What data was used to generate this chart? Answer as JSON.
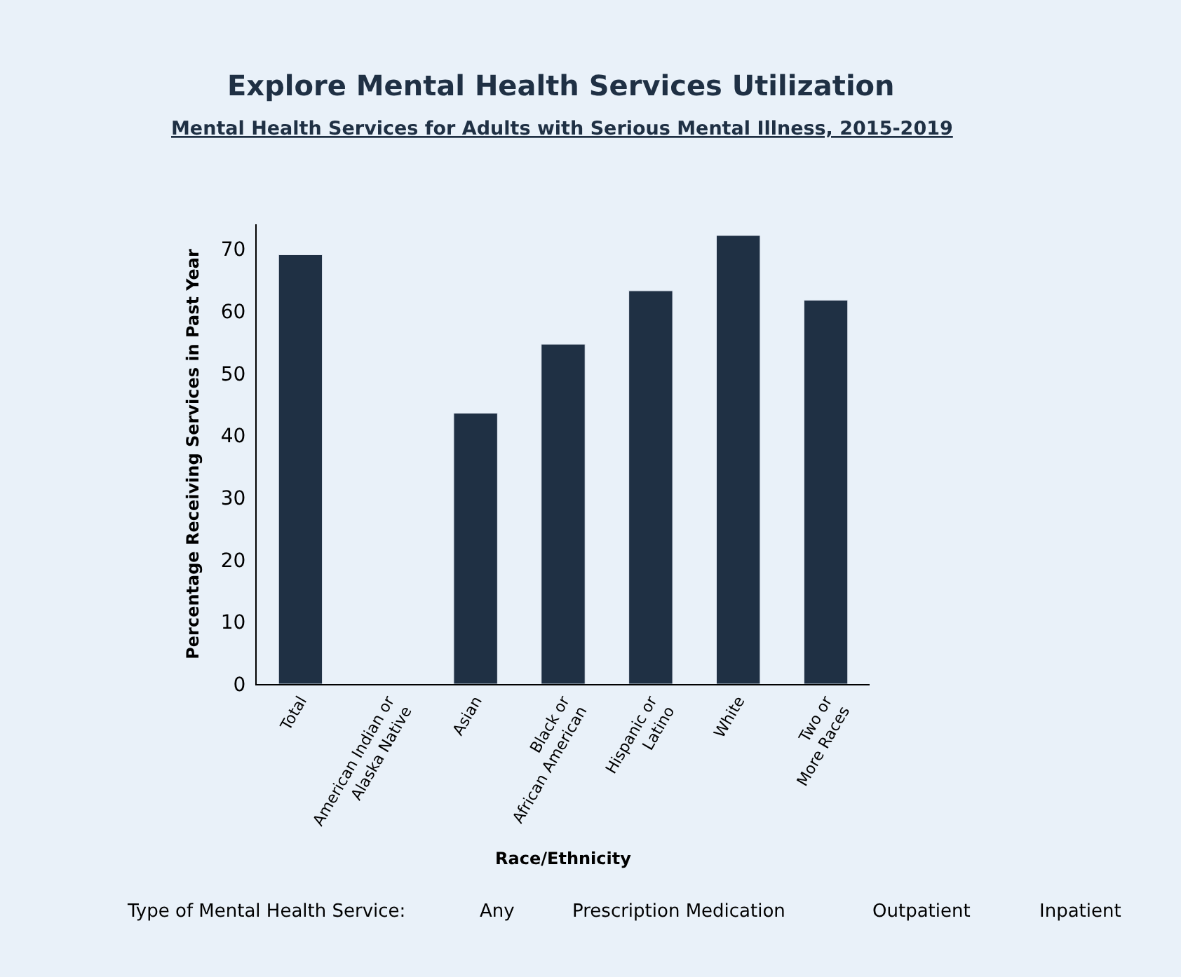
{
  "chart_data": {
    "type": "bar",
    "title": "Explore Mental Health Services Utilization",
    "subtitle": "Mental Health Services for Adults with Serious Mental Illness, 2015-2019",
    "xlabel": "Race/Ethnicity",
    "ylabel": "Percentage Receiving Services in Past Year",
    "categories": [
      "Total",
      "American Indian or Alaska Native",
      "Asian",
      "Black or African American",
      "Hispanic or Latino",
      "White",
      "Two or More Races"
    ],
    "values": [
      69.1,
      null,
      43.6,
      54.7,
      63.3,
      72.2,
      61.8
    ],
    "color": "#1f3044",
    "ylim": [
      0,
      74
    ],
    "yticks": [
      0,
      10,
      20,
      30,
      40,
      50,
      60,
      70
    ],
    "grid": false,
    "legend": false,
    "annotations": [
      "Type of Mental Health Service:",
      "Any",
      "Prescription Medication",
      "Outpatient",
      "Inpatient"
    ]
  }
}
